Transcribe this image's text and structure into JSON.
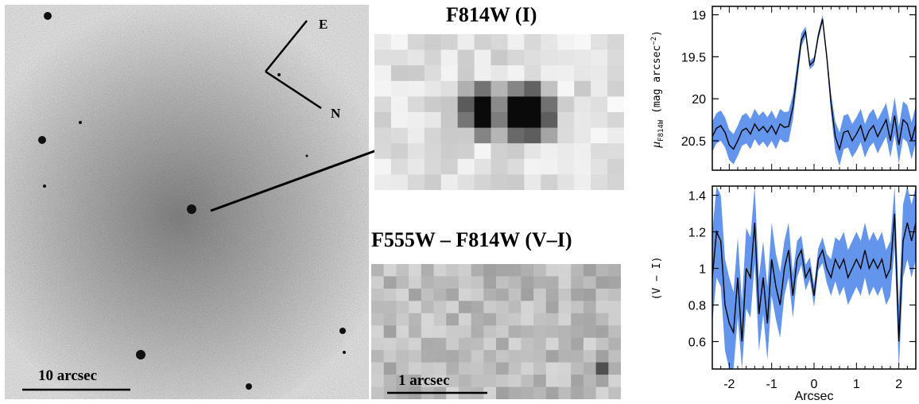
{
  "image_panel": {
    "scale_label": "10 arcsec",
    "compass_east": "E",
    "compass_north": "N"
  },
  "inset_f814w": {
    "title": "F814W (I)"
  },
  "inset_color": {
    "title": "F555W – F814W (V–I)",
    "scale_label": "1 arcsec"
  },
  "chart_data": [
    {
      "type": "line",
      "ylabel": "μ_F814W (mag arcsec⁻²)",
      "ylabel_parts": {
        "mu": "μ",
        "sub": "F814W",
        "rest": "(mag arcsec",
        "sup": "−2",
        "close": ")"
      },
      "xlim": [
        -2.4,
        2.4
      ],
      "ylim": [
        20.85,
        18.9
      ],
      "yticks": [
        19,
        19.5,
        20,
        20.5
      ],
      "ytick_labels": [
        "19",
        "19.5",
        "20",
        "20.5"
      ],
      "band_color": "#6495ED",
      "x": [
        -2.4,
        -2.3,
        -2.2,
        -2.1,
        -2.0,
        -1.9,
        -1.8,
        -1.7,
        -1.6,
        -1.5,
        -1.4,
        -1.3,
        -1.2,
        -1.1,
        -1.0,
        -0.9,
        -0.8,
        -0.7,
        -0.6,
        -0.5,
        -0.4,
        -0.3,
        -0.2,
        -0.1,
        0.0,
        0.1,
        0.2,
        0.3,
        0.4,
        0.5,
        0.6,
        0.7,
        0.8,
        0.9,
        1.0,
        1.1,
        1.2,
        1.3,
        1.4,
        1.5,
        1.6,
        1.7,
        1.8,
        1.9,
        2.0,
        2.1,
        2.2,
        2.3,
        2.4
      ],
      "y": [
        20.45,
        20.35,
        20.32,
        20.4,
        20.55,
        20.6,
        20.5,
        20.38,
        20.35,
        20.42,
        20.3,
        20.38,
        20.33,
        20.4,
        20.32,
        20.42,
        20.3,
        20.34,
        20.33,
        20.1,
        19.7,
        19.3,
        19.2,
        19.6,
        19.55,
        19.25,
        19.05,
        19.5,
        20.05,
        20.45,
        20.6,
        20.4,
        20.38,
        20.5,
        20.42,
        20.32,
        20.5,
        20.38,
        20.32,
        20.45,
        20.35,
        20.25,
        20.5,
        20.2,
        20.55,
        20.25,
        20.3,
        20.5,
        20.3
      ],
      "err": [
        0.18,
        0.18,
        0.18,
        0.18,
        0.18,
        0.18,
        0.18,
        0.18,
        0.18,
        0.18,
        0.18,
        0.18,
        0.18,
        0.18,
        0.18,
        0.18,
        0.18,
        0.18,
        0.18,
        0.15,
        0.12,
        0.08,
        0.06,
        0.05,
        0.05,
        0.05,
        0.05,
        0.06,
        0.12,
        0.18,
        0.2,
        0.2,
        0.2,
        0.2,
        0.2,
        0.2,
        0.2,
        0.2,
        0.2,
        0.2,
        0.2,
        0.2,
        0.2,
        0.22,
        0.22,
        0.22,
        0.22,
        0.22,
        0.22
      ]
    },
    {
      "type": "line",
      "xlabel": "Arcsec",
      "ylabel": "(V − I)",
      "xlim": [
        -2.4,
        2.4
      ],
      "ylim": [
        0.45,
        1.45
      ],
      "xticks": [
        -2,
        -1,
        0,
        1,
        2
      ],
      "xtick_labels": [
        "-2",
        "-1",
        "0",
        "1",
        "2"
      ],
      "yticks": [
        0.6,
        0.8,
        1,
        1.2,
        1.4
      ],
      "ytick_labels": [
        "0.6",
        "0.8",
        "1",
        "1.2",
        "1.4"
      ],
      "band_color": "#6495ED",
      "x": [
        -2.4,
        -2.3,
        -2.2,
        -2.1,
        -2.0,
        -1.9,
        -1.8,
        -1.7,
        -1.6,
        -1.5,
        -1.4,
        -1.3,
        -1.2,
        -1.1,
        -1.0,
        -0.9,
        -0.8,
        -0.7,
        -0.6,
        -0.5,
        -0.4,
        -0.3,
        -0.2,
        -0.1,
        0.0,
        0.1,
        0.2,
        0.3,
        0.4,
        0.5,
        0.6,
        0.7,
        0.8,
        0.9,
        1.0,
        1.1,
        1.2,
        1.3,
        1.4,
        1.5,
        1.6,
        1.7,
        1.8,
        1.9,
        2.0,
        2.1,
        2.2,
        2.3,
        2.4
      ],
      "y": [
        0.95,
        1.2,
        1.15,
        0.8,
        0.7,
        0.65,
        0.95,
        0.6,
        1.0,
        0.95,
        1.25,
        0.75,
        0.95,
        0.7,
        1.05,
        0.9,
        0.8,
        1.0,
        1.1,
        0.85,
        1.05,
        1.1,
        0.95,
        1.0,
        0.85,
        1.05,
        1.1,
        1.0,
        0.95,
        1.05,
        1.0,
        1.05,
        0.95,
        1.0,
        1.05,
        1.0,
        1.1,
        1.0,
        1.05,
        1.0,
        1.05,
        0.95,
        1.0,
        1.3,
        0.6,
        1.15,
        1.25,
        1.15,
        1.25
      ],
      "err": [
        0.25,
        0.25,
        0.25,
        0.25,
        0.25,
        0.22,
        0.22,
        0.22,
        0.22,
        0.22,
        0.22,
        0.2,
        0.2,
        0.2,
        0.2,
        0.18,
        0.18,
        0.15,
        0.15,
        0.12,
        0.1,
        0.08,
        0.07,
        0.06,
        0.06,
        0.06,
        0.07,
        0.08,
        0.1,
        0.12,
        0.15,
        0.15,
        0.15,
        0.15,
        0.15,
        0.15,
        0.15,
        0.15,
        0.15,
        0.15,
        0.15,
        0.15,
        0.15,
        0.18,
        0.2,
        0.2,
        0.2,
        0.2,
        0.2
      ]
    }
  ]
}
